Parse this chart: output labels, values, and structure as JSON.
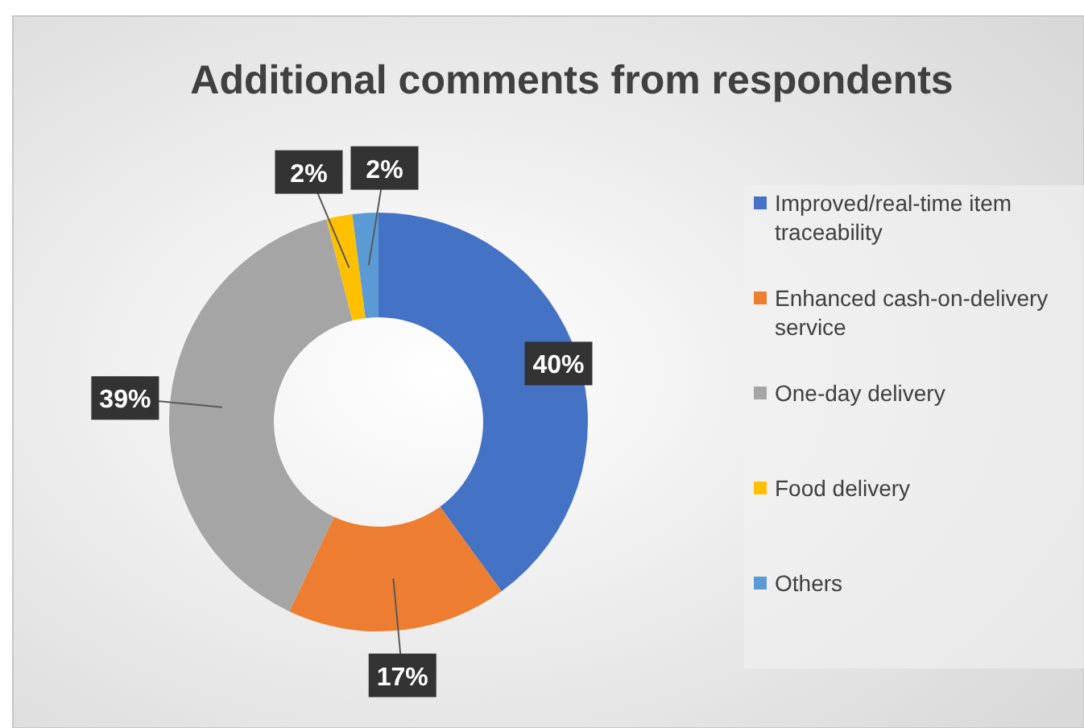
{
  "chart_data": {
    "type": "donut",
    "title": "Additional comments from respondents",
    "categories": [
      "Improved/real-time item traceability",
      "Enhanced cash-on-delivery service",
      "One-day delivery",
      "Food delivery",
      "Others"
    ],
    "values": [
      40,
      17,
      39,
      2,
      2
    ],
    "colors": [
      "#4472c4",
      "#ed7d31",
      "#a5a5a5",
      "#ffc000",
      "#5b9bd5"
    ],
    "value_labels": [
      "40%",
      "17%",
      "39%",
      "2%",
      "2%"
    ],
    "legend": "right"
  }
}
